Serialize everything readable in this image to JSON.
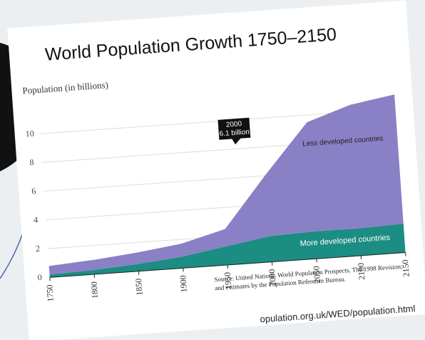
{
  "chart_data": {
    "type": "stacked-area",
    "title": "World Population Growth 1750–2150",
    "y_label": "Population (in billions)",
    "x": [
      1750,
      1800,
      1850,
      1900,
      1950,
      2000,
      2050,
      2100,
      2150
    ],
    "series": [
      {
        "name": "More developed countries",
        "color": "#1b8d82",
        "values": [
          0.2,
          0.3,
          0.5,
          0.8,
          1.3,
          1.8,
          1.9,
          1.9,
          2.0
        ]
      },
      {
        "name": "Less developed countries",
        "color": "#8a80c6",
        "values": [
          0.6,
          0.7,
          0.8,
          0.9,
          1.2,
          4.3,
          7.6,
          8.6,
          9.0
        ]
      }
    ],
    "xlim": [
      1750,
      2150
    ],
    "xticks": [
      1750,
      1800,
      1850,
      1900,
      1950,
      2000,
      2050,
      2100,
      2150
    ],
    "ylim": [
      0,
      12
    ],
    "yticks": [
      0,
      2,
      4,
      6,
      8,
      10
    ],
    "grid": true,
    "annotation": {
      "lines": [
        "2000",
        "6.1 billion"
      ]
    },
    "source": "Source: United Nations, World Population Prospects, The 1998 Revision; and estimates by the Population Reference Bureau.",
    "url": "opulation.org.uk/WED/population.html"
  }
}
